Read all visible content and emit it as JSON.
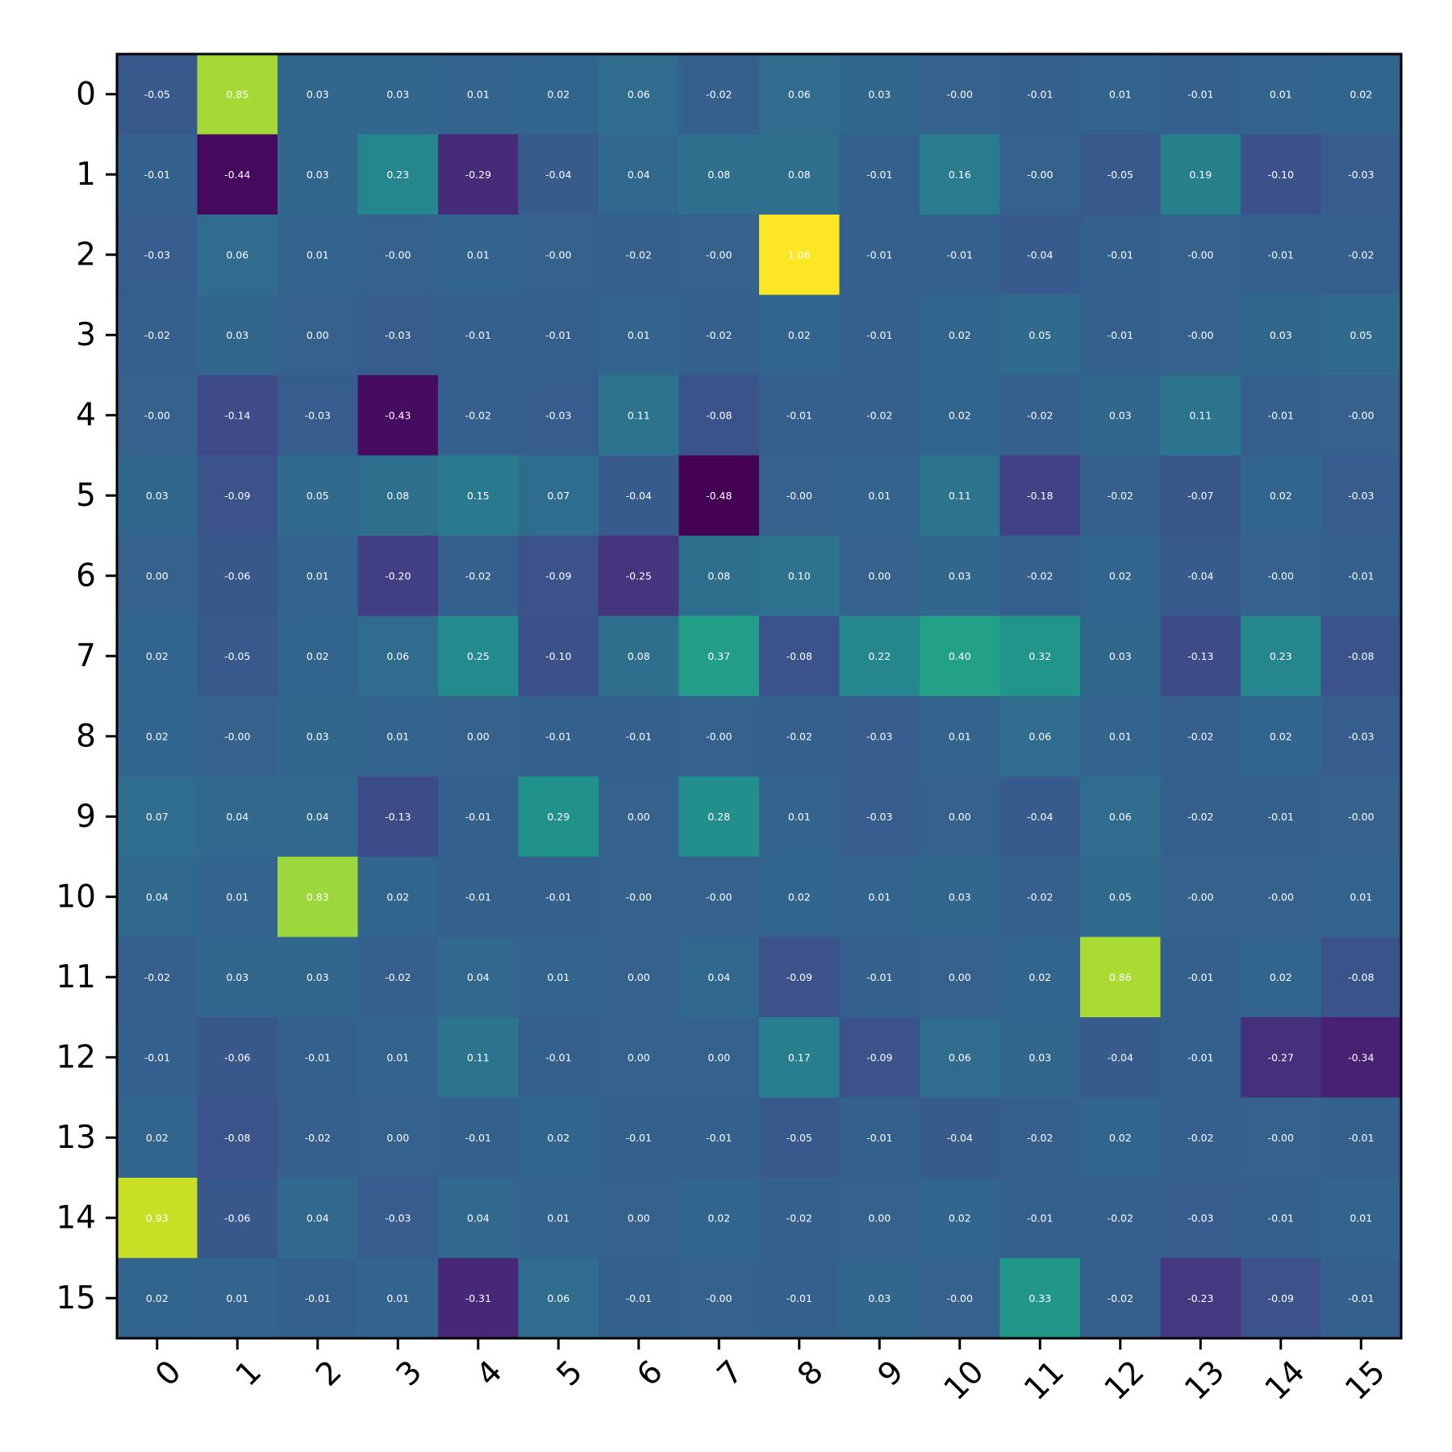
{
  "chart_data": {
    "type": "heatmap",
    "colormap": "viridis",
    "vmin": -0.48,
    "vmax": 1.06,
    "x_tick_labels": [
      "0",
      "1",
      "2",
      "3",
      "4",
      "5",
      "6",
      "7",
      "8",
      "9",
      "10",
      "11",
      "12",
      "13",
      "14",
      "15"
    ],
    "y_tick_labels": [
      "0",
      "1",
      "2",
      "3",
      "4",
      "5",
      "6",
      "7",
      "8",
      "9",
      "10",
      "11",
      "12",
      "13",
      "14",
      "15"
    ],
    "x_tick_rotation_deg": 45,
    "values": [
      [
        -0.05,
        0.85,
        0.03,
        0.03,
        0.01,
        0.02,
        0.06,
        -0.02,
        0.06,
        0.03,
        -0.0,
        -0.01,
        0.01,
        -0.01,
        0.01,
        0.02
      ],
      [
        -0.01,
        -0.44,
        0.03,
        0.23,
        -0.29,
        -0.04,
        0.04,
        0.08,
        0.08,
        -0.01,
        0.16,
        -0.0,
        -0.05,
        0.19,
        -0.1,
        -0.03
      ],
      [
        -0.03,
        0.06,
        0.01,
        -0.0,
        0.01,
        -0.0,
        -0.02,
        -0.0,
        1.06,
        -0.01,
        -0.01,
        -0.04,
        -0.01,
        -0.0,
        -0.01,
        -0.02
      ],
      [
        -0.02,
        0.03,
        0.0,
        -0.03,
        -0.01,
        -0.01,
        0.01,
        -0.02,
        0.02,
        -0.01,
        0.02,
        0.05,
        -0.01,
        -0.0,
        0.03,
        0.05
      ],
      [
        -0.0,
        -0.14,
        -0.03,
        -0.43,
        -0.02,
        -0.03,
        0.11,
        -0.08,
        -0.01,
        -0.02,
        0.02,
        -0.02,
        0.03,
        0.11,
        -0.01,
        -0.0
      ],
      [
        0.03,
        -0.09,
        0.05,
        0.08,
        0.15,
        0.07,
        -0.04,
        -0.48,
        -0.0,
        0.01,
        0.11,
        -0.18,
        -0.02,
        -0.07,
        0.02,
        -0.03
      ],
      [
        0.0,
        -0.06,
        0.01,
        -0.2,
        -0.02,
        -0.09,
        -0.25,
        0.08,
        0.1,
        0.0,
        0.03,
        -0.02,
        0.02,
        -0.04,
        -0.0,
        -0.01
      ],
      [
        0.02,
        -0.05,
        0.02,
        0.06,
        0.25,
        -0.1,
        0.08,
        0.37,
        -0.08,
        0.22,
        0.4,
        0.32,
        0.03,
        -0.13,
        0.23,
        -0.08
      ],
      [
        0.02,
        -0.0,
        0.03,
        0.01,
        0.0,
        -0.01,
        -0.01,
        -0.0,
        -0.02,
        -0.03,
        0.01,
        0.06,
        0.01,
        -0.02,
        0.02,
        -0.03
      ],
      [
        0.07,
        0.04,
        0.04,
        -0.13,
        -0.01,
        0.29,
        0.0,
        0.28,
        0.01,
        -0.03,
        0.0,
        -0.04,
        0.06,
        -0.02,
        -0.01,
        -0.0
      ],
      [
        0.04,
        0.01,
        0.83,
        0.02,
        -0.01,
        -0.01,
        -0.0,
        -0.0,
        0.02,
        0.01,
        0.03,
        -0.02,
        0.05,
        -0.0,
        -0.0,
        0.01
      ],
      [
        -0.02,
        0.03,
        0.03,
        -0.02,
        0.04,
        0.01,
        0.0,
        0.04,
        -0.09,
        -0.01,
        0.0,
        0.02,
        0.86,
        -0.01,
        0.02,
        -0.08
      ],
      [
        -0.01,
        -0.06,
        -0.01,
        0.01,
        0.11,
        -0.01,
        0.0,
        0.0,
        0.17,
        -0.09,
        0.06,
        0.03,
        -0.04,
        -0.01,
        -0.27,
        -0.34
      ],
      [
        0.02,
        -0.08,
        -0.02,
        0.0,
        -0.01,
        0.02,
        -0.01,
        -0.01,
        -0.05,
        -0.01,
        -0.04,
        -0.02,
        0.02,
        -0.02,
        -0.0,
        -0.01
      ],
      [
        0.93,
        -0.06,
        0.04,
        -0.03,
        0.04,
        0.01,
        0.0,
        0.02,
        -0.02,
        0.0,
        0.02,
        -0.01,
        -0.02,
        -0.03,
        -0.01,
        0.01
      ],
      [
        0.02,
        0.01,
        -0.01,
        0.01,
        -0.31,
        0.06,
        -0.01,
        -0.0,
        -0.01,
        0.03,
        -0.0,
        0.33,
        -0.02,
        -0.23,
        -0.09,
        -0.01
      ]
    ],
    "title": "",
    "xlabel": "",
    "ylabel": ""
  }
}
